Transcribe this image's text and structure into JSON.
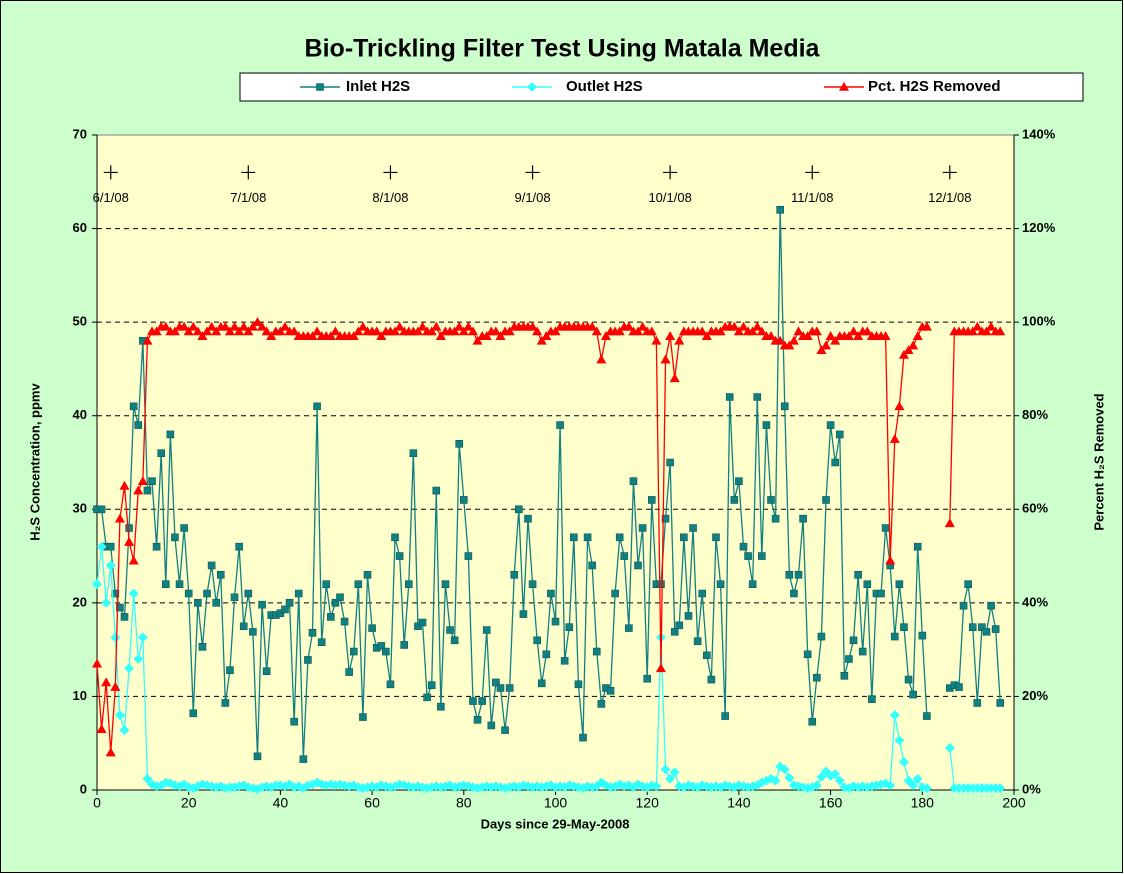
{
  "chart_data": {
    "type": "line",
    "title": "Bio-Trickling Filter Test Using Matala Media",
    "xlabel": "Days since 29-May-2008",
    "ylabel": "H₂S Concentration, ppmv",
    "y2label": "Percent H₂S Removed",
    "xlim": [
      0,
      200
    ],
    "xticks": [
      0,
      20,
      40,
      60,
      80,
      100,
      120,
      140,
      160,
      180,
      200
    ],
    "ylim": [
      0,
      70
    ],
    "yticks": [
      0,
      10,
      20,
      30,
      40,
      50,
      60,
      70
    ],
    "y2lim": [
      0,
      140
    ],
    "y2ticks": [
      {
        "value": 0,
        "label": "0%"
      },
      {
        "value": 20,
        "label": "20%"
      },
      {
        "value": 40,
        "label": "40%"
      },
      {
        "value": 60,
        "label": "60%"
      },
      {
        "value": 80,
        "label": "80%"
      },
      {
        "value": 100,
        "label": "100%"
      },
      {
        "value": 120,
        "label": "120%"
      },
      {
        "value": 140,
        "label": "140%"
      }
    ],
    "grid": true,
    "annotations": [
      {
        "x": 3,
        "y": 66,
        "text": "6/1/08"
      },
      {
        "x": 33,
        "y": 66,
        "text": "7/1/08"
      },
      {
        "x": 64,
        "y": 66,
        "text": "8/1/08"
      },
      {
        "x": 95,
        "y": 66,
        "text": "9/1/08"
      },
      {
        "x": 125,
        "y": 66,
        "text": "10/1/08"
      },
      {
        "x": 156,
        "y": 66,
        "text": "11/1/08"
      },
      {
        "x": 186,
        "y": 66,
        "text": "12/1/08"
      }
    ],
    "x": [
      0,
      1,
      2,
      3,
      4,
      5,
      6,
      7,
      8,
      9,
      10,
      11,
      12,
      13,
      14,
      15,
      16,
      17,
      18,
      19,
      20,
      21,
      22,
      23,
      24,
      25,
      26,
      27,
      28,
      29,
      30,
      31,
      32,
      33,
      34,
      35,
      36,
      37,
      38,
      39,
      40,
      41,
      42,
      43,
      44,
      45,
      46,
      47,
      48,
      49,
      50,
      51,
      52,
      53,
      54,
      55,
      56,
      57,
      58,
      59,
      60,
      61,
      62,
      63,
      64,
      65,
      66,
      67,
      68,
      69,
      70,
      71,
      72,
      73,
      74,
      75,
      76,
      77,
      78,
      79,
      80,
      81,
      82,
      83,
      84,
      85,
      86,
      87,
      88,
      89,
      90,
      91,
      92,
      93,
      94,
      95,
      96,
      97,
      98,
      99,
      100,
      101,
      102,
      103,
      104,
      105,
      106,
      107,
      108,
      109,
      110,
      111,
      112,
      113,
      114,
      115,
      116,
      117,
      118,
      119,
      120,
      121,
      122,
      123,
      124,
      125,
      126,
      127,
      128,
      129,
      130,
      131,
      132,
      133,
      134,
      135,
      136,
      137,
      138,
      139,
      140,
      141,
      142,
      143,
      144,
      145,
      146,
      147,
      148,
      149,
      150,
      151,
      152,
      153,
      154,
      155,
      156,
      157,
      158,
      159,
      160,
      161,
      162,
      163,
      164,
      165,
      166,
      167,
      168,
      169,
      170,
      171,
      172,
      173,
      174,
      175,
      176,
      177,
      178,
      179,
      180,
      181,
      182,
      183,
      184,
      185,
      186,
      187,
      188,
      189,
      190,
      191,
      192,
      193,
      194,
      195,
      196,
      197
    ],
    "series": [
      {
        "name": "Inlet H2S",
        "color": "#118080",
        "marker": "square",
        "values": [
          30,
          30,
          26,
          26,
          21,
          19.5,
          18.5,
          28,
          41,
          39,
          48,
          32,
          33,
          26,
          36,
          22,
          38,
          27,
          22,
          28,
          21,
          8.2,
          20,
          15.3,
          21,
          24,
          20,
          23,
          9.3,
          12.8,
          20.6,
          26,
          17.5,
          21,
          16.9,
          3.6,
          19.8,
          12.7,
          18.7,
          18.7,
          18.9,
          19.3,
          20,
          7.3,
          21,
          3.3,
          13.9,
          16.8,
          41,
          15.8,
          22,
          18.5,
          20,
          20.6,
          18,
          12.6,
          14.8,
          22,
          7.8,
          23,
          17.3,
          15.2,
          15.4,
          14.8,
          11.3,
          27,
          25,
          15.5,
          22,
          36,
          17.5,
          17.9,
          9.9,
          11.2,
          32,
          8.9,
          22,
          17.1,
          16,
          37,
          31,
          25,
          9.5,
          7.5,
          9.5,
          17.1,
          6.9,
          11.5,
          10.9,
          6.4,
          10.9,
          23,
          30,
          18.8,
          29,
          22,
          16,
          11.4,
          14.5,
          21,
          18,
          39,
          13.8,
          17.4,
          27,
          11.3,
          5.6,
          27,
          24,
          14.8,
          9.2,
          10.9,
          10.6,
          21,
          27,
          25,
          17.3,
          33,
          24,
          28,
          11.9,
          31,
          22,
          22,
          29,
          35,
          16.9,
          17.6,
          27,
          18.6,
          28,
          15.9,
          21,
          14.4,
          11.8,
          27,
          22,
          7.9,
          42,
          31,
          33,
          26,
          25,
          22,
          42,
          25,
          39,
          31,
          29,
          62,
          41,
          23,
          21,
          23,
          29,
          14.5,
          7.3,
          12,
          16.4,
          31,
          39,
          35,
          38,
          12.2,
          14,
          16,
          23,
          14.8,
          22,
          9.7,
          21,
          21,
          28,
          24,
          16.4,
          22,
          17.4,
          11.8,
          10.2,
          26,
          16.5,
          7.9,
          null,
          null,
          null,
          null,
          10.9,
          11.2,
          11,
          19.7,
          22,
          17.4,
          9.3,
          17.4,
          16.9,
          19.7,
          17.2,
          9.3
        ]
      },
      {
        "name": "Outlet H2S",
        "color": "#33ffff",
        "marker": "diamond",
        "values": [
          22,
          26,
          20,
          24,
          16.3,
          8,
          6.4,
          13,
          21,
          14,
          16.3,
          1.2,
          0.6,
          0.4,
          0.5,
          0.8,
          0.7,
          0.5,
          0.4,
          0.6,
          0.3,
          0.2,
          0.4,
          0.6,
          0.5,
          0.4,
          0.3,
          0.4,
          0.2,
          0.3,
          0.3,
          0.4,
          0.5,
          0.3,
          0.2,
          0.1,
          0.3,
          0.4,
          0.3,
          0.5,
          0.5,
          0.4,
          0.6,
          0.3,
          0.4,
          0.2,
          0.5,
          0.6,
          0.8,
          0.6,
          0.5,
          0.6,
          0.5,
          0.6,
          0.5,
          0.4,
          0.5,
          0.3,
          0.2,
          0.3,
          0.4,
          0.3,
          0.5,
          0.4,
          0.3,
          0.4,
          0.6,
          0.5,
          0.4,
          0.3,
          0.4,
          0.3,
          0.2,
          0.3,
          0.4,
          0.3,
          0.4,
          0.5,
          0.3,
          0.4,
          0.5,
          0.4,
          0.3,
          0.2,
          0.3,
          0.4,
          0.3,
          0.4,
          0.3,
          0.2,
          0.3,
          0.4,
          0.3,
          0.5,
          0.4,
          0.3,
          0.4,
          0.3,
          0.4,
          0.5,
          0.3,
          0.4,
          0.3,
          0.5,
          0.4,
          0.3,
          0.2,
          0.4,
          0.3,
          0.4,
          0.8,
          0.5,
          0.3,
          0.4,
          0.6,
          0.4,
          0.5,
          0.3,
          0.6,
          0.4,
          0.3,
          0.5,
          0.4,
          16.3,
          2.2,
          1.2,
          1.9,
          0.4,
          0.3,
          0.5,
          0.4,
          0.3,
          0.5,
          0.4,
          0.3,
          0.4,
          0.3,
          0.5,
          0.4,
          0.3,
          0.5,
          0.4,
          0.3,
          0.4,
          0.5,
          0.8,
          1,
          1.2,
          1,
          2.5,
          2.2,
          1.3,
          0.5,
          0.4,
          0.3,
          0.2,
          0.3,
          0.5,
          1.4,
          2,
          1.5,
          1.7,
          1,
          0.3,
          0.2,
          0.4,
          0.3,
          0.4,
          0.3,
          0.4,
          0.5,
          0.6,
          0.7,
          0.5,
          8,
          5.3,
          3,
          1,
          0.5,
          1.2,
          0.3,
          0.2,
          null,
          null,
          null,
          null,
          4.5,
          0.2,
          0.2,
          0.2,
          0.2,
          0.2,
          0.2,
          0.2,
          0.2,
          0.2,
          0.2,
          0.2
        ]
      },
      {
        "name": "Pct. H2S Removed",
        "color": "#ff0000",
        "marker": "triangle",
        "axis": "y2",
        "values": [
          27,
          13,
          23,
          8,
          22,
          58,
          65,
          53,
          49,
          64,
          66,
          96,
          98,
          98,
          99,
          99,
          98,
          98,
          99,
          99,
          98,
          99,
          98,
          97,
          98,
          99,
          98,
          99,
          99,
          98,
          99,
          98,
          99,
          98,
          99,
          100,
          99,
          98,
          97,
          98,
          98,
          99,
          98,
          98,
          97,
          97,
          97,
          97,
          98,
          97,
          97,
          97,
          98,
          97,
          97,
          97,
          97,
          98,
          99,
          98,
          98,
          98,
          97,
          98,
          98,
          98,
          99,
          98,
          98,
          98,
          98,
          99,
          98,
          98,
          99,
          97,
          98,
          98,
          98,
          99,
          98,
          99,
          98,
          96,
          97,
          97,
          98,
          98,
          97,
          98,
          98,
          99,
          99,
          99,
          99,
          99,
          98,
          96,
          97,
          98,
          98,
          99,
          99,
          99,
          99,
          99,
          99,
          99,
          99,
          98,
          92,
          97,
          98,
          98,
          98,
          99,
          99,
          98,
          98,
          99,
          98,
          98,
          96,
          26,
          92,
          97,
          88,
          96,
          98,
          98,
          98,
          98,
          98,
          97,
          98,
          98,
          98,
          99,
          99,
          99,
          98,
          99,
          98,
          98,
          99,
          98,
          97,
          97,
          96,
          96,
          95,
          95,
          96,
          98,
          97,
          97,
          98,
          98,
          94,
          95,
          97,
          96,
          97,
          97,
          97,
          98,
          97,
          98,
          98,
          97,
          97,
          97,
          97,
          49,
          75,
          82,
          93,
          94,
          95,
          97,
          99,
          99,
          null,
          null,
          null,
          null,
          57,
          98,
          98,
          98,
          98,
          98,
          99,
          98,
          98,
          99,
          98,
          98
        ]
      }
    ]
  }
}
